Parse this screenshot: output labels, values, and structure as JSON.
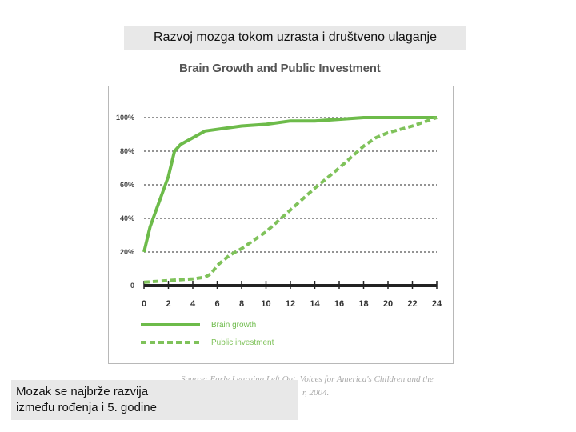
{
  "header": {
    "caption": "Razvoj mozga tokom uzrasta i društveno ulaganje"
  },
  "footer": {
    "caption_line1": "Mozak se najbrže razvija",
    "caption_line2": "između rođenja i 5. godine"
  },
  "source": {
    "line1": "Source: Early Learning Left Out, Voices for America's Children and the",
    "line2": "r, 2004."
  },
  "chart_data": {
    "type": "line",
    "title": "Brain Growth and Public Investment",
    "xlabel": "",
    "ylabel": "",
    "x_ticks": [
      "0",
      "2",
      "4",
      "6",
      "8",
      "10",
      "12",
      "14",
      "16",
      "18",
      "20",
      "22",
      "24"
    ],
    "y_ticks": [
      "0",
      "20%",
      "40%",
      "60%",
      "80%",
      "100%"
    ],
    "xlim": [
      0,
      24
    ],
    "ylim": [
      0,
      100
    ],
    "grid": "dotted-horizontal",
    "legend_position": "bottom-left",
    "series": [
      {
        "name": "Brain growth",
        "style": "solid",
        "color": "#6dbb4a",
        "x": [
          0,
          0.5,
          1,
          1.5,
          2,
          2.5,
          3,
          3.5,
          4,
          5,
          6,
          8,
          10,
          12,
          14,
          16,
          18,
          20,
          22,
          24
        ],
        "y": [
          20,
          35,
          45,
          55,
          65,
          80,
          84,
          86,
          88,
          92,
          93,
          95,
          96,
          98,
          98,
          99,
          100,
          100,
          100,
          100
        ]
      },
      {
        "name": "Public investment",
        "style": "dashed",
        "color": "#7fc25a",
        "x": [
          0,
          2,
          4,
          5,
          5.5,
          6,
          7,
          8,
          10,
          12,
          14,
          16,
          18,
          19,
          20,
          22,
          24
        ],
        "y": [
          2,
          3,
          4,
          5,
          7,
          12,
          18,
          22,
          32,
          45,
          58,
          70,
          83,
          88,
          91,
          95,
          100
        ]
      }
    ]
  }
}
